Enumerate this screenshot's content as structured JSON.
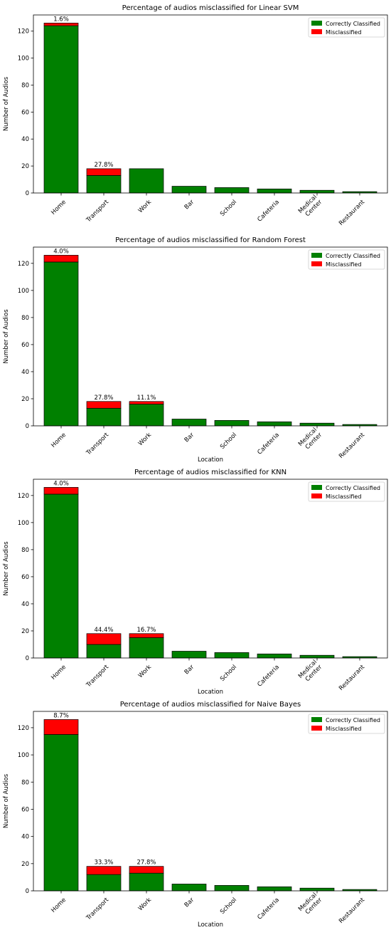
{
  "chart_data": [
    {
      "type": "bar",
      "stacked": true,
      "title": "Percentage of audios misclassified for Linear SVM",
      "xlabel": "",
      "ylabel": "Number of Audios",
      "ylim": [
        0,
        132
      ],
      "yticks": [
        0,
        20,
        40,
        60,
        80,
        100,
        120
      ],
      "categories": [
        "Home",
        "Transport",
        "Work",
        "Bar",
        "School",
        "Cafeteria",
        "Medical\nCenter",
        "Restaurant"
      ],
      "series": [
        {
          "name": "Correctly Classified",
          "color": "#008000",
          "values": [
            124,
            13,
            18,
            5,
            4,
            3,
            2,
            1
          ]
        },
        {
          "name": "Misclassified",
          "color": "#ff0000",
          "values": [
            2,
            5,
            0,
            0,
            0,
            0,
            0,
            0
          ]
        }
      ],
      "bar_labels": [
        "1.6%",
        "27.8%",
        "",
        "",
        "",
        "",
        "",
        ""
      ],
      "legend": "top-right",
      "grid": false
    },
    {
      "type": "bar",
      "stacked": true,
      "title": "Percentage of audios misclassified for Random Forest",
      "xlabel": "Location",
      "ylabel": "Number of Audios",
      "ylim": [
        0,
        132
      ],
      "yticks": [
        0,
        20,
        40,
        60,
        80,
        100,
        120
      ],
      "categories": [
        "Home",
        "Transport",
        "Work",
        "Bar",
        "School",
        "Cafeteria",
        "Medical\nCenter",
        "Restaurant"
      ],
      "series": [
        {
          "name": "Correctly Classified",
          "color": "#008000",
          "values": [
            121,
            13,
            16,
            5,
            4,
            3,
            2,
            1
          ]
        },
        {
          "name": "Misclassified",
          "color": "#ff0000",
          "values": [
            5,
            5,
            2,
            0,
            0,
            0,
            0,
            0
          ]
        }
      ],
      "bar_labels": [
        "4.0%",
        "27.8%",
        "11.1%",
        "",
        "",
        "",
        "",
        ""
      ],
      "legend": "top-right",
      "grid": false
    },
    {
      "type": "bar",
      "stacked": true,
      "title": "Percentage of audios misclassified for KNN",
      "xlabel": "Location",
      "ylabel": "Number of Audios",
      "ylim": [
        0,
        132
      ],
      "yticks": [
        0,
        20,
        40,
        60,
        80,
        100,
        120
      ],
      "categories": [
        "Home",
        "Transport",
        "Work",
        "Bar",
        "School",
        "Cafeteria",
        "Medical\nCenter",
        "Restaurant"
      ],
      "series": [
        {
          "name": "Correctly Classified",
          "color": "#008000",
          "values": [
            121,
            10,
            15,
            5,
            4,
            3,
            2,
            1
          ]
        },
        {
          "name": "Misclassified",
          "color": "#ff0000",
          "values": [
            5,
            8,
            3,
            0,
            0,
            0,
            0,
            0
          ]
        }
      ],
      "bar_labels": [
        "4.0%",
        "44.4%",
        "16.7%",
        "",
        "",
        "",
        "",
        ""
      ],
      "legend": "top-right",
      "grid": false
    },
    {
      "type": "bar",
      "stacked": true,
      "title": "Percentage of audios misclassified for Naive Bayes",
      "xlabel": "Location",
      "ylabel": "Number of Audios",
      "ylim": [
        0,
        132
      ],
      "yticks": [
        0,
        20,
        40,
        60,
        80,
        100,
        120
      ],
      "categories": [
        "Home",
        "Transport",
        "Work",
        "Bar",
        "School",
        "Cafeteria",
        "Medical\nCenter",
        "Restaurant"
      ],
      "series": [
        {
          "name": "Correctly Classified",
          "color": "#008000",
          "values": [
            115,
            12,
            13,
            5,
            4,
            3,
            2,
            1
          ]
        },
        {
          "name": "Misclassified",
          "color": "#ff0000",
          "values": [
            11,
            6,
            5,
            0,
            0,
            0,
            0,
            0
          ]
        }
      ],
      "bar_labels": [
        "8.7%",
        "33.3%",
        "27.8%",
        "",
        "",
        "",
        "",
        ""
      ],
      "legend": "top-right",
      "grid": false
    }
  ]
}
